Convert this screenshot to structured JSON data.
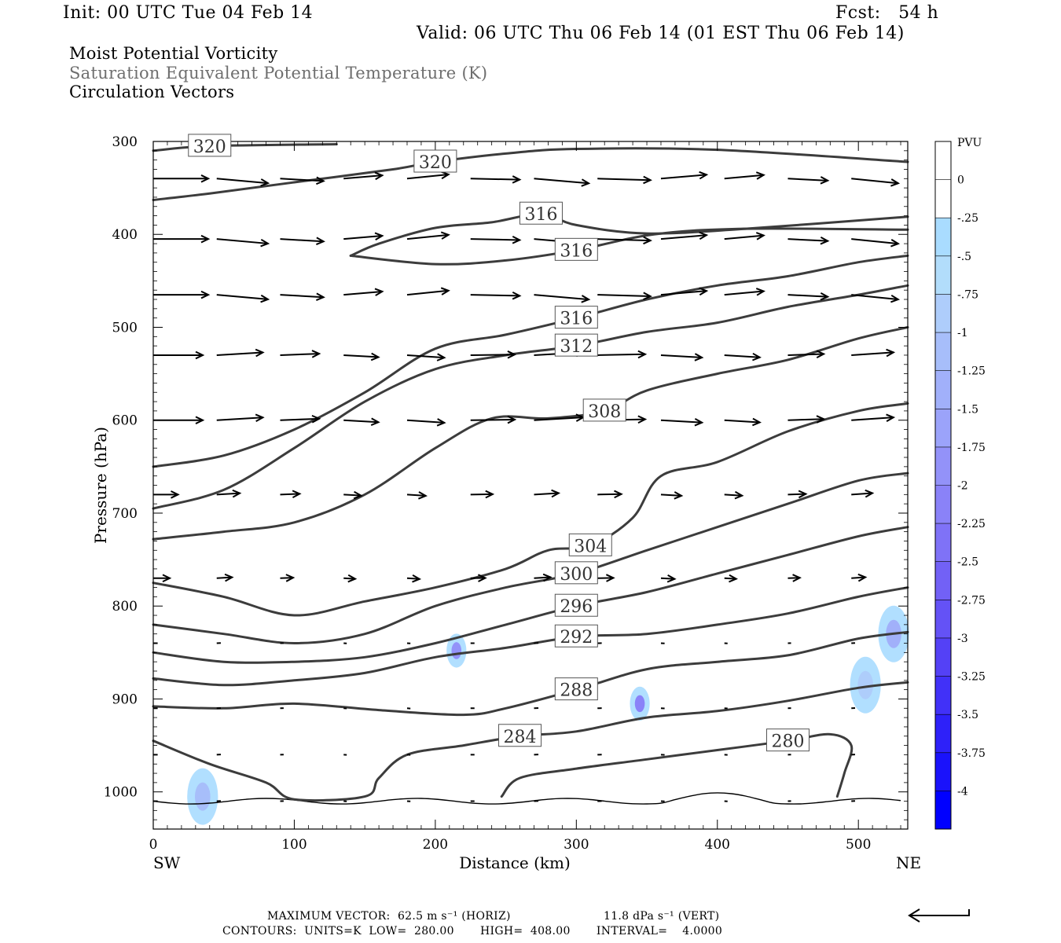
{
  "header": {
    "init": "Init: 00 UTC Tue 04 Feb 14",
    "fcst": "Fcst:   54 h",
    "valid": "Valid: 06 UTC Thu 06 Feb 14 (01 EST Thu 06 Feb 14)",
    "field1": "Moist Potential Vorticity",
    "field2": "Saturation Equivalent Potential Temperature (K)",
    "field3": "Circulation Vectors"
  },
  "chart_data": {
    "type": "cross-section",
    "xlabel": "Distance (km)",
    "ylabel": "Pressure (hPa)",
    "xlim": [
      0,
      535
    ],
    "ylim": [
      1040,
      300
    ],
    "x_ticks": [
      0,
      100,
      200,
      300,
      400,
      500
    ],
    "y_ticks": [
      300,
      400,
      500,
      600,
      700,
      800,
      900,
      1000
    ],
    "x_end_left": "SW",
    "x_end_right": "NE",
    "colorbar": {
      "unit": "PVU",
      "labels": [
        "0",
        "-.25",
        "-.5",
        "-.75",
        "-1",
        "-1.25",
        "-1.5",
        "-1.75",
        "-2",
        "-2.25",
        "-2.5",
        "-2.75",
        "-3",
        "-3.25",
        "-3.5",
        "-3.75",
        "-4"
      ],
      "colors": [
        "#ffffff",
        "#ffffff",
        "#a9dcff",
        "#b2ddfb",
        "#aecdfb",
        "#a7befa",
        "#a1b0fa",
        "#9ba3fa",
        "#9392f9",
        "#8a82f8",
        "#7f72f7",
        "#7261f6",
        "#6452f6",
        "#5441f6",
        "#4131f8",
        "#2e21f9",
        "#1a12fb",
        "#0000ff"
      ]
    },
    "theta_contours": [
      {
        "label": "320",
        "points": [
          [
            0,
            310
          ],
          [
            40,
            305
          ],
          [
            130,
            303
          ]
        ]
      },
      {
        "label": "320",
        "points": [
          [
            0,
            363
          ],
          [
            40,
            356
          ],
          [
            100,
            344
          ],
          [
            170,
            330
          ],
          [
            200,
            322
          ],
          [
            250,
            313
          ],
          [
            300,
            308
          ],
          [
            400,
            309
          ],
          [
            535,
            322
          ]
        ]
      },
      {
        "label": "316",
        "points": [
          [
            140,
            423
          ],
          [
            160,
            410
          ],
          [
            200,
            393
          ],
          [
            240,
            387
          ],
          [
            275,
            378
          ],
          [
            300,
            390
          ],
          [
            350,
            399
          ],
          [
            420,
            394
          ],
          [
            535,
            381
          ]
        ]
      },
      {
        "label": "316",
        "points": [
          [
            140,
            423
          ],
          [
            200,
            432
          ],
          [
            250,
            428
          ],
          [
            300,
            417
          ],
          [
            355,
            400
          ],
          [
            420,
            394
          ],
          [
            535,
            395
          ]
        ]
      },
      {
        "label": "316",
        "points": [
          [
            0,
            650
          ],
          [
            50,
            638
          ],
          [
            100,
            610
          ],
          [
            150,
            570
          ],
          [
            200,
            523
          ],
          [
            250,
            508
          ],
          [
            300,
            490
          ],
          [
            350,
            470
          ],
          [
            400,
            455
          ],
          [
            450,
            445
          ],
          [
            500,
            430
          ],
          [
            535,
            423
          ]
        ]
      },
      {
        "label": "312",
        "points": [
          [
            0,
            695
          ],
          [
            50,
            675
          ],
          [
            100,
            630
          ],
          [
            150,
            580
          ],
          [
            200,
            545
          ],
          [
            250,
            530
          ],
          [
            300,
            520
          ],
          [
            350,
            505
          ],
          [
            400,
            495
          ],
          [
            450,
            478
          ],
          [
            500,
            465
          ],
          [
            535,
            455
          ]
        ]
      },
      {
        "label": "308",
        "points": [
          [
            0,
            728
          ],
          [
            50,
            720
          ],
          [
            100,
            710
          ],
          [
            150,
            680
          ],
          [
            200,
            630
          ],
          [
            240,
            598
          ],
          [
            280,
            598
          ],
          [
            320,
            590
          ],
          [
            350,
            568
          ],
          [
            400,
            550
          ],
          [
            450,
            535
          ],
          [
            500,
            512
          ],
          [
            535,
            500
          ]
        ]
      },
      {
        "label": "304",
        "points": [
          [
            0,
            775
          ],
          [
            50,
            790
          ],
          [
            100,
            810
          ],
          [
            150,
            795
          ],
          [
            200,
            780
          ],
          [
            250,
            760
          ],
          [
            280,
            740
          ],
          [
            310,
            735
          ],
          [
            340,
            705
          ],
          [
            360,
            660
          ],
          [
            400,
            645
          ],
          [
            450,
            612
          ],
          [
            500,
            590
          ],
          [
            535,
            582
          ]
        ]
      },
      {
        "label": "300",
        "points": [
          [
            0,
            820
          ],
          [
            50,
            830
          ],
          [
            100,
            840
          ],
          [
            150,
            830
          ],
          [
            200,
            800
          ],
          [
            250,
            780
          ],
          [
            300,
            765
          ],
          [
            350,
            740
          ],
          [
            400,
            715
          ],
          [
            450,
            690
          ],
          [
            500,
            665
          ],
          [
            535,
            657
          ]
        ]
      },
      {
        "label": "296",
        "points": [
          [
            0,
            850
          ],
          [
            50,
            860
          ],
          [
            100,
            860
          ],
          [
            150,
            855
          ],
          [
            200,
            840
          ],
          [
            250,
            820
          ],
          [
            300,
            800
          ],
          [
            350,
            785
          ],
          [
            400,
            765
          ],
          [
            450,
            745
          ],
          [
            500,
            725
          ],
          [
            535,
            715
          ]
        ]
      },
      {
        "label": "292",
        "points": [
          [
            0,
            878
          ],
          [
            50,
            885
          ],
          [
            100,
            880
          ],
          [
            150,
            872
          ],
          [
            200,
            855
          ],
          [
            250,
            845
          ],
          [
            300,
            833
          ],
          [
            350,
            830
          ],
          [
            400,
            820
          ],
          [
            450,
            808
          ],
          [
            500,
            790
          ],
          [
            535,
            780
          ]
        ]
      },
      {
        "label": "288",
        "points": [
          [
            0,
            908
          ],
          [
            50,
            910
          ],
          [
            100,
            905
          ],
          [
            160,
            912
          ],
          [
            220,
            917
          ],
          [
            250,
            910
          ],
          [
            300,
            890
          ],
          [
            350,
            868
          ],
          [
            400,
            860
          ],
          [
            450,
            853
          ],
          [
            500,
            835
          ],
          [
            535,
            828
          ]
        ]
      },
      {
        "label": "284",
        "points": [
          [
            0,
            945
          ],
          [
            40,
            970
          ],
          [
            80,
            990
          ],
          [
            100,
            1008
          ],
          [
            150,
            1005
          ],
          [
            160,
            985
          ],
          [
            180,
            960
          ],
          [
            220,
            950
          ],
          [
            260,
            940
          ],
          [
            300,
            935
          ],
          [
            350,
            920
          ],
          [
            400,
            913
          ],
          [
            450,
            902
          ],
          [
            500,
            888
          ],
          [
            535,
            882
          ]
        ]
      },
      {
        "label": "280",
        "points": [
          [
            247,
            1005
          ],
          [
            260,
            985
          ],
          [
            300,
            975
          ],
          [
            350,
            965
          ],
          [
            400,
            955
          ],
          [
            450,
            945
          ],
          [
            480,
            938
          ],
          [
            495,
            950
          ],
          [
            490,
            980
          ],
          [
            485,
            1005
          ]
        ]
      }
    ],
    "pv_shading": [
      {
        "x": 215,
        "p": 848,
        "value": -1.75
      },
      {
        "x": 345,
        "p": 905,
        "value": -2.0
      },
      {
        "x": 505,
        "p": 885,
        "value": -0.75
      },
      {
        "x": 525,
        "p": 830,
        "value": -1.25
      },
      {
        "x": 35,
        "p": 1005,
        "value": -1.0
      }
    ],
    "vector_levels": [
      340,
      405,
      465,
      530,
      600,
      680,
      770,
      840,
      910,
      960,
      1010
    ],
    "vector_scale_label": "MAXIMUM VECTOR:  62.5 m s⁻¹ (HORIZ)",
    "vector_scale_vert": "11.8 dPa s⁻¹ (VERT)",
    "contour_info": "CONTOURS:  UNITS=K  LOW=  280.00       HIGH=  408.00       INTERVAL=    4.0000"
  }
}
